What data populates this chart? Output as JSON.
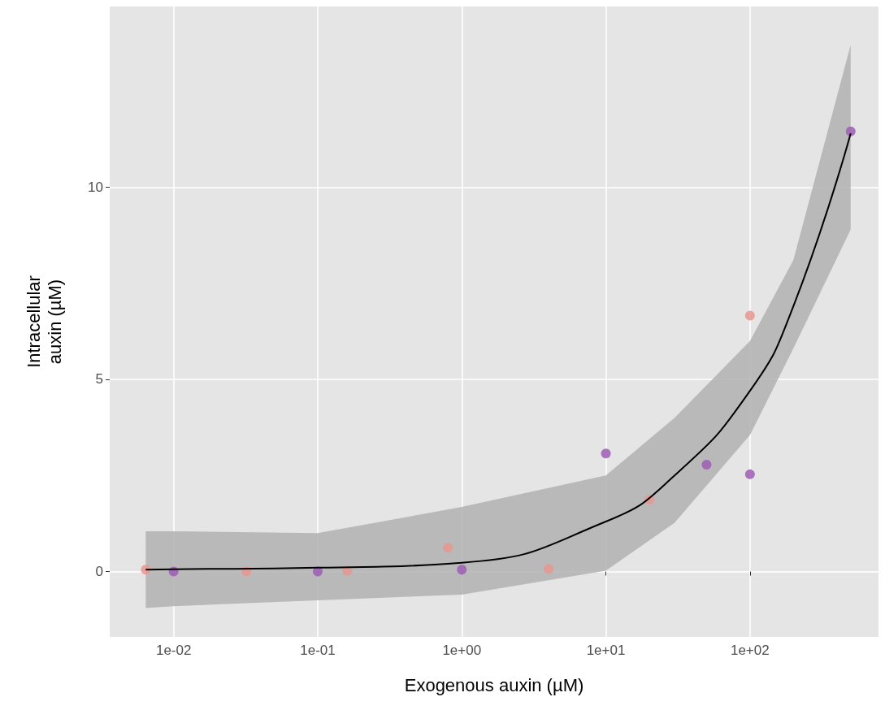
{
  "chart_data": {
    "type": "scatter",
    "xlabel": "Exogenous auxin (µM)",
    "ylabel": "Intracellular\nauxin (µM)",
    "log": "x",
    "grid": true,
    "marker": "circle",
    "xlim": [
      0.0036,
      780
    ],
    "ylim": [
      -1.7,
      14.7
    ],
    "xticks": [
      {
        "value": 0.01,
        "label": "1e-02"
      },
      {
        "value": 0.1,
        "label": "1e-01"
      },
      {
        "value": 1,
        "label": "1e+00"
      },
      {
        "value": 10,
        "label": "1e+01"
      },
      {
        "value": 100,
        "label": "1e+02"
      }
    ],
    "yticks": [
      0,
      5,
      10
    ],
    "series": [
      {
        "color": "#e99690",
        "x": [
          0.0064,
          0.032,
          0.16,
          0.8,
          4,
          20,
          100
        ],
        "values": [
          0.05,
          0.0,
          0.02,
          0.62,
          0.07,
          1.87,
          6.66
        ]
      },
      {
        "color": "#9c5db5",
        "x": [
          0.01,
          0.1,
          1,
          10,
          50,
          100,
          500
        ],
        "values": [
          0.0,
          0.0,
          0.05,
          3.07,
          2.78,
          2.53,
          11.45
        ]
      },
      {
        "type": "line",
        "marker": "none",
        "color": "#000000",
        "x": [
          0.0064,
          0.01,
          0.1,
          1,
          10,
          30,
          100,
          200,
          500
        ],
        "values": [
          0.05,
          0.06,
          0.1,
          0.23,
          1.3,
          2.5,
          4.7,
          6.9,
          11.4
        ],
        "lower": [
          -0.95,
          -0.9,
          -0.75,
          -0.6,
          0.02,
          1.27,
          3.55,
          5.8,
          8.9
        ],
        "upper": [
          1.05,
          1.05,
          1.0,
          1.68,
          2.5,
          4.0,
          6.0,
          8.1,
          13.7
        ]
      }
    ]
  }
}
